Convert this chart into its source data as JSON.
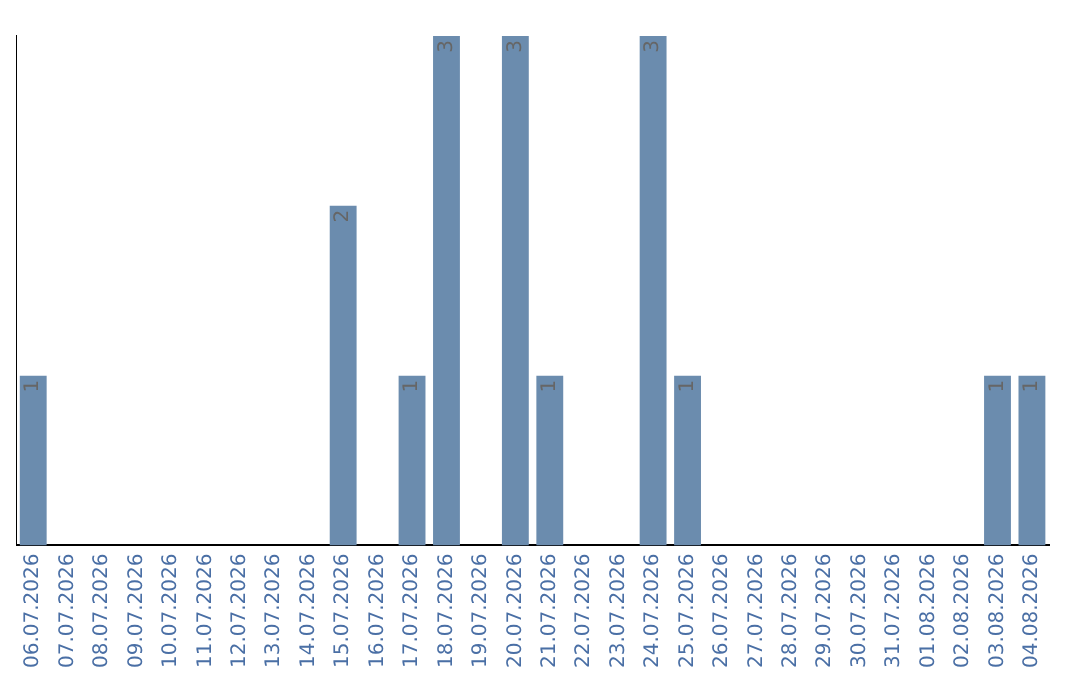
{
  "chart_data": {
    "type": "bar",
    "categories": [
      "06.07.2026",
      "07.07.2026",
      "08.07.2026",
      "09.07.2026",
      "10.07.2026",
      "11.07.2026",
      "12.07.2026",
      "13.07.2026",
      "14.07.2026",
      "15.07.2026",
      "16.07.2026",
      "17.07.2026",
      "18.07.2026",
      "19.07.2026",
      "20.07.2026",
      "21.07.2026",
      "22.07.2026",
      "23.07.2026",
      "24.07.2026",
      "25.07.2026",
      "26.07.2026",
      "27.07.2026",
      "28.07.2026",
      "29.07.2026",
      "30.07.2026",
      "31.07.2026",
      "01.08.2026",
      "02.08.2026",
      "03.08.2026",
      "04.08.2026"
    ],
    "values": [
      1,
      0,
      0,
      0,
      0,
      0,
      0,
      0,
      0,
      2,
      0,
      1,
      3,
      0,
      3,
      1,
      0,
      0,
      3,
      1,
      0,
      0,
      0,
      0,
      0,
      0,
      0,
      0,
      1,
      1
    ],
    "value_labels": [
      "1",
      null,
      null,
      null,
      null,
      null,
      null,
      null,
      null,
      "2",
      null,
      "1",
      "3",
      null,
      "3",
      "1",
      null,
      null,
      "3",
      "1",
      null,
      null,
      null,
      null,
      null,
      null,
      null,
      null,
      "1",
      "1"
    ],
    "color": "#6b8cae",
    "ylim": [
      0,
      3
    ],
    "tick_labels": "x",
    "grid": false,
    "legend": false
  }
}
